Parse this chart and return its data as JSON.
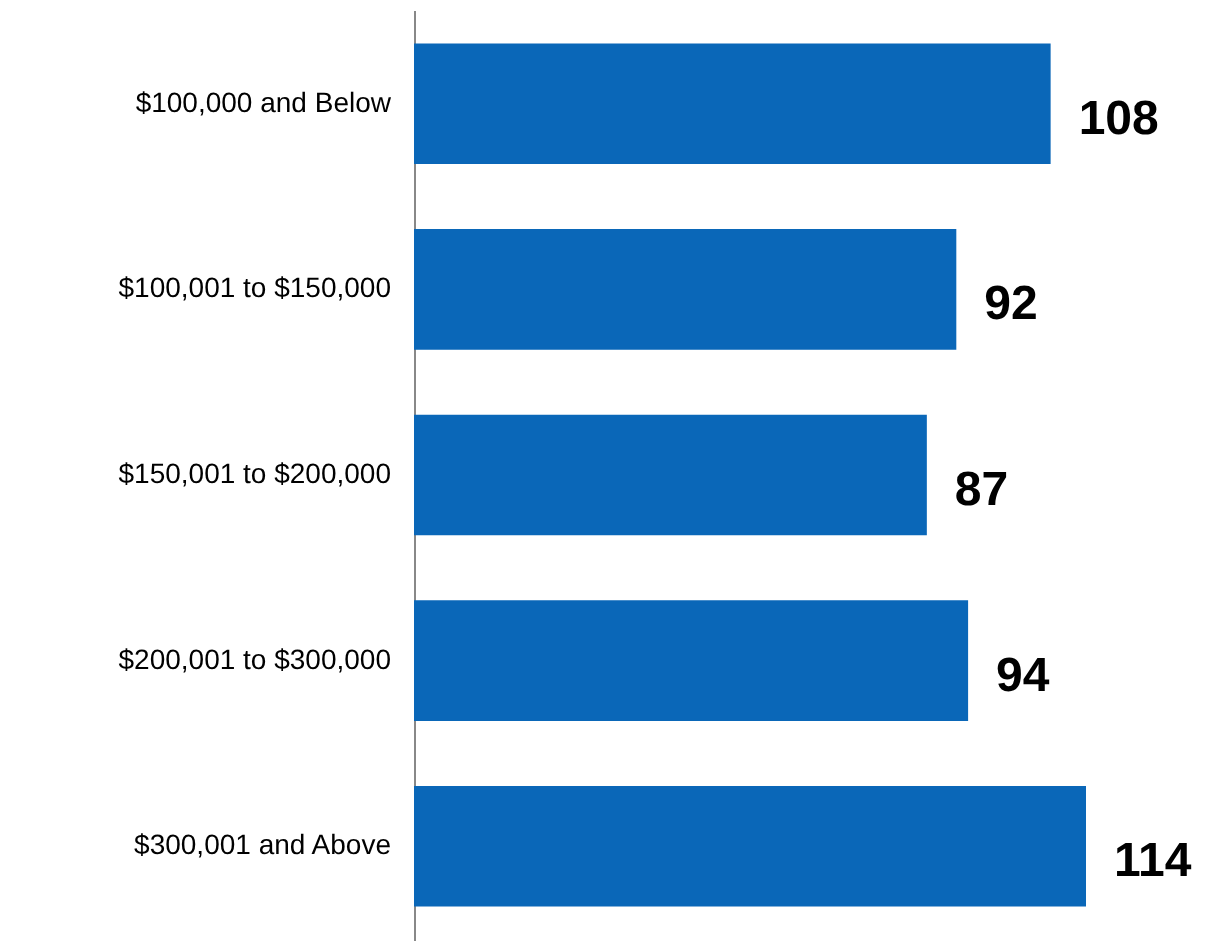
{
  "chart_data": {
    "type": "bar",
    "orientation": "horizontal",
    "categories": [
      "$100,000 and Below",
      "$100,001 to $150,000",
      "$150,001 to $200,000",
      "$200,001 to $300,000",
      "$300,001 and Above"
    ],
    "values": [
      108,
      92,
      87,
      94,
      114
    ],
    "color": "#0a67b8",
    "data_labels": true
  }
}
